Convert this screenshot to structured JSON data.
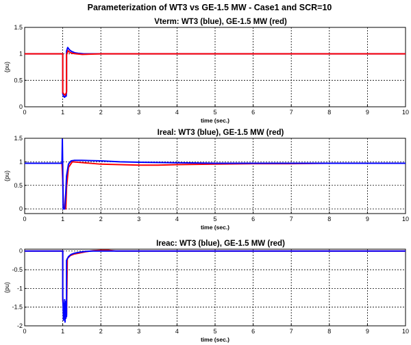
{
  "figure_title": "Parameterization of WT3 vs GE-1.5 MW - Case1 and SCR=10",
  "colors": {
    "wt3": "#0000ff",
    "ge": "#ff0000",
    "axis": "#000000",
    "grid": "#000000"
  },
  "chart_data": [
    {
      "type": "line",
      "title": "Vterm: WT3 (blue), GE-1.5 MW (red)",
      "xlabel": "time (sec.)",
      "ylabel": "(pu)",
      "xlim": [
        0,
        10
      ],
      "ylim": [
        0,
        1.5
      ],
      "xticks": [
        0,
        1,
        2,
        3,
        4,
        5,
        6,
        7,
        8,
        9,
        10
      ],
      "yticks": [
        0,
        0.5,
        1,
        1.5
      ],
      "ytick_labels": [
        "0",
        "0.5",
        "1",
        "1.5"
      ],
      "grid": true,
      "series": [
        {
          "key": "wt3",
          "x": [
            0,
            1.0,
            1.0,
            1.02,
            1.05,
            1.08,
            1.09,
            1.1,
            1.1,
            1.13,
            1.16,
            1.2,
            1.25,
            1.32,
            1.4,
            1.55,
            2.0,
            10
          ],
          "y": [
            1,
            1,
            0.25,
            0.2,
            0.18,
            0.22,
            0.2,
            0.3,
            1.05,
            1.12,
            1.09,
            1.06,
            1.04,
            1.02,
            1.01,
            1.0,
            1.0,
            1.0
          ]
        },
        {
          "key": "ge",
          "x": [
            0,
            1.0,
            1.0,
            1.03,
            1.06,
            1.09,
            1.1,
            1.1,
            1.14,
            1.18,
            1.25,
            1.35,
            1.5,
            2.0,
            10
          ],
          "y": [
            1,
            1,
            0.27,
            0.24,
            0.22,
            0.26,
            0.28,
            0.98,
            1.06,
            1.03,
            1.01,
            1.0,
            0.99,
            1.0,
            1.0
          ]
        }
      ]
    },
    {
      "type": "line",
      "title": "Ireal: WT3 (blue), GE-1.5 MW (red)",
      "xlabel": "time (sec.)",
      "ylabel": "(pu)",
      "xlim": [
        0,
        10
      ],
      "ylim": [
        -0.1,
        1.5
      ],
      "xticks": [
        0,
        1,
        2,
        3,
        4,
        5,
        6,
        7,
        8,
        9,
        10
      ],
      "yticks": [
        0,
        0.5,
        1,
        1.5
      ],
      "ytick_labels": [
        "0",
        "0.5",
        "1",
        "1.5"
      ],
      "grid": true,
      "series": [
        {
          "key": "ge",
          "x": [
            0,
            0.98,
            1.0,
            1.02,
            1.05,
            1.08,
            1.1,
            1.15,
            1.25,
            1.4,
            1.7,
            2.0,
            2.5,
            3.0,
            3.5,
            4.0,
            5.0,
            6.0,
            7.0,
            8.0,
            10
          ],
          "y": [
            0.97,
            0.97,
            0.6,
            0.0,
            0.0,
            0.0,
            0.45,
            0.88,
            1.0,
            0.99,
            0.97,
            0.95,
            0.94,
            0.93,
            0.93,
            0.94,
            0.95,
            0.96,
            0.96,
            0.97,
            0.97
          ]
        },
        {
          "key": "wt3",
          "x": [
            0,
            0.98,
            0.99,
            1.0,
            1.01,
            1.02,
            1.05,
            1.08,
            1.1,
            1.15,
            1.22,
            1.3,
            1.5,
            2.0,
            2.5,
            3.0,
            4.0,
            5.0,
            6.0,
            7.0,
            8.0,
            10
          ],
          "y": [
            0.97,
            0.97,
            1.48,
            0.9,
            0.0,
            0.0,
            0.0,
            0.35,
            0.7,
            0.95,
            1.02,
            1.03,
            1.03,
            1.02,
            1.0,
            0.99,
            0.98,
            0.97,
            0.97,
            0.97,
            0.97,
            0.97
          ]
        }
      ]
    },
    {
      "type": "line",
      "title": "Ireac: WT3 (blue), GE-1.5 MW (red)",
      "xlabel": "time (sec.)",
      "ylabel": "(pu)",
      "xlim": [
        0,
        10
      ],
      "ylim": [
        -2,
        0.05
      ],
      "xticks": [
        0,
        1,
        2,
        3,
        4,
        5,
        6,
        7,
        8,
        9,
        10
      ],
      "yticks": [
        0,
        -0.5,
        -1,
        -1.5,
        -2
      ],
      "ytick_labels": [
        "0",
        "-0.5",
        "-1",
        "-1.5",
        "-2"
      ],
      "grid": true,
      "series": [
        {
          "key": "ge",
          "x": [
            0,
            1.0,
            1.0,
            1.03,
            1.05,
            1.08,
            1.1,
            1.12,
            1.2,
            1.3,
            1.45,
            1.6,
            1.8,
            2.0,
            2.2,
            2.4,
            10
          ],
          "y": [
            0,
            0,
            -1.3,
            -1.75,
            -1.6,
            -1.8,
            -1.7,
            -0.2,
            -0.12,
            -0.08,
            -0.05,
            -0.02,
            0.01,
            0.02,
            0.02,
            0.0,
            0.0
          ]
        },
        {
          "key": "wt3",
          "x": [
            0,
            1.0,
            1.0,
            1.01,
            1.02,
            1.03,
            1.04,
            1.05,
            1.06,
            1.07,
            1.08,
            1.09,
            1.1,
            1.1,
            1.15,
            1.22,
            1.3,
            1.45,
            1.6,
            1.8,
            2.0,
            10
          ],
          "y": [
            0,
            0,
            -1.2,
            -1.5,
            -1.85,
            -1.4,
            -1.7,
            -1.3,
            -1.9,
            -1.35,
            -1.8,
            -1.4,
            -1.75,
            -0.25,
            -0.15,
            -0.09,
            -0.06,
            -0.03,
            -0.01,
            0.0,
            0.0,
            0.0
          ]
        }
      ]
    }
  ]
}
